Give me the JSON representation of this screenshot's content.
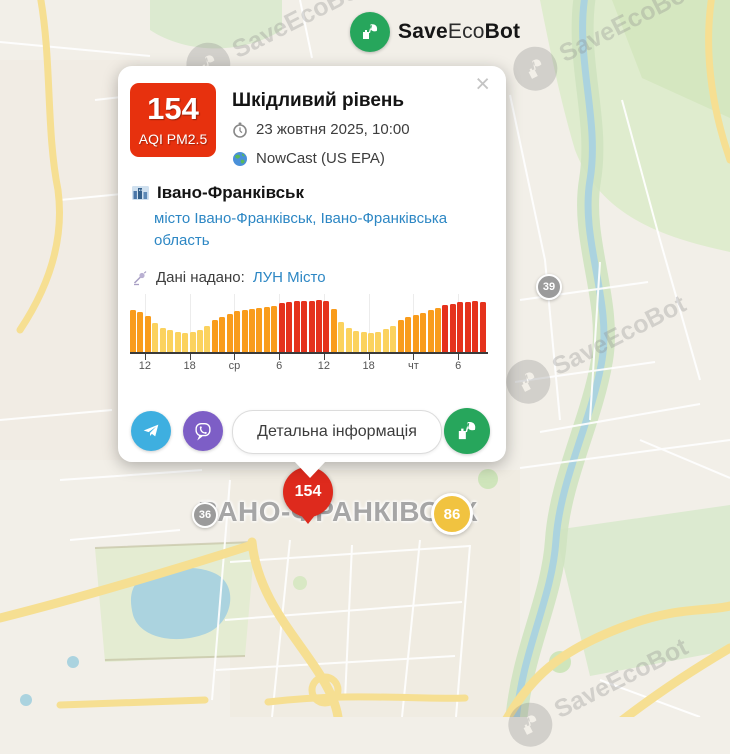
{
  "header": {
    "brand_save": "Save",
    "brand_eco": "Eco",
    "brand_bot": "Bot"
  },
  "popup": {
    "aqi": {
      "value": "154",
      "label": "AQI PM2.5",
      "color": "#e7310e"
    },
    "title": "Шкідливий рівень",
    "datetime": "23 жовтня 2025, 10:00",
    "method": "NowCast (US EPA)",
    "city": "Івано-Франківськ",
    "region_link": "місто Івано-Франківськ, Івано-Франківська область",
    "provider_label": "Дані надано:",
    "provider_link": "ЛУН Місто",
    "details_button": "Детальна інформація",
    "close_label": "×"
  },
  "chart_data": {
    "type": "bar",
    "title": "",
    "xlabel": "",
    "ylabel": "",
    "x_unit": "hour",
    "values": [
      134,
      130,
      115,
      95,
      79,
      71,
      65,
      61,
      63,
      71,
      85,
      102,
      114,
      124,
      131,
      134,
      138,
      141,
      144,
      147,
      158,
      161,
      163,
      165,
      166,
      167,
      165,
      139,
      96,
      78,
      68,
      63,
      62,
      66,
      73,
      84,
      103,
      112,
      120,
      127,
      135,
      141,
      153,
      156,
      160,
      162,
      163,
      162
    ],
    "ticks": [
      {
        "index": 1.5,
        "label": "12"
      },
      {
        "index": 7.5,
        "label": "18"
      },
      {
        "index": 13.5,
        "label": "ср"
      },
      {
        "index": 19.5,
        "label": "6"
      },
      {
        "index": 25.5,
        "label": "12"
      },
      {
        "index": 31.5,
        "label": "18"
      },
      {
        "index": 37.5,
        "label": "чт"
      },
      {
        "index": 43.5,
        "label": "6"
      }
    ],
    "ylim": [
      0,
      170
    ],
    "grid": true,
    "legend": false,
    "colors": {
      "yellow": "#fbd25e",
      "orange": "#f99c1c",
      "red": "#e5321c"
    },
    "thresholds": {
      "orange_min": 101,
      "red_min": 151
    }
  },
  "map": {
    "watermark_text": "SaveEcoBot",
    "city_label": "ВАНО-ФРАНКІВСЬК",
    "markers": [
      {
        "value": "154",
        "type": "red-pin",
        "color": "#de2a1d"
      },
      {
        "value": "86",
        "type": "yellow-circle",
        "color": "#f1c340"
      },
      {
        "value": "36",
        "type": "gray-circle",
        "color": "#9b9b9b"
      },
      {
        "value": "39",
        "type": "gray-circle",
        "color": "#9b9b9b"
      }
    ],
    "colors": {
      "land": "#f2efe8",
      "water": "#abd3df",
      "green": "#dcead0",
      "road_yellow": "#f6df92"
    }
  }
}
